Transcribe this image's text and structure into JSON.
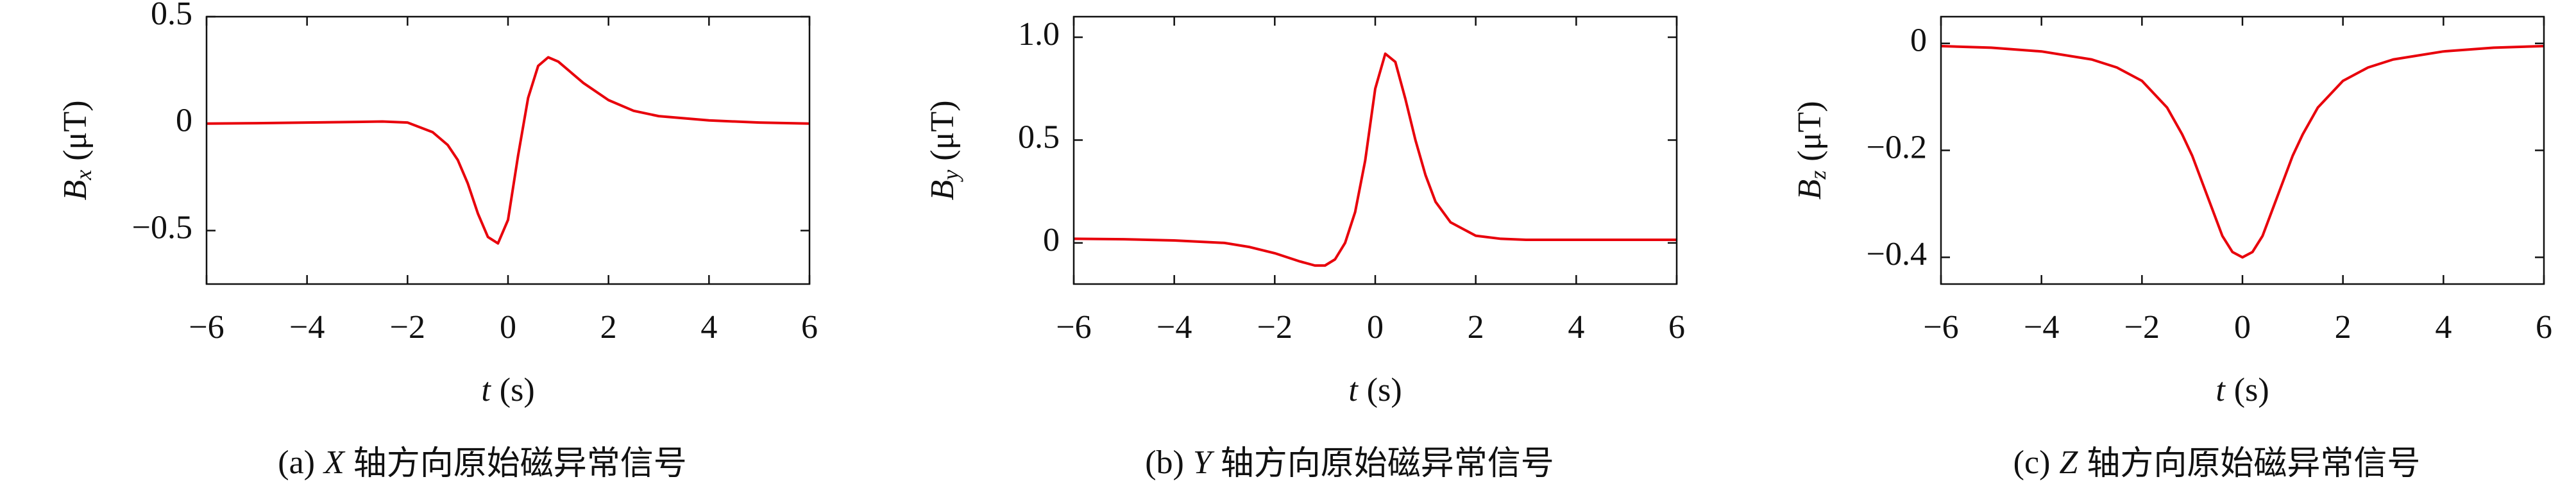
{
  "chart_data": [
    {
      "type": "line",
      "y_label": {
        "symbol": "B",
        "subscript": "x",
        "unit": "(μT)"
      },
      "x_label": {
        "symbol": "t",
        "unit": "(s)"
      },
      "caption": {
        "tag": "(a)",
        "axis": "X",
        "text": "轴方向原始磁异常信号"
      },
      "x": [
        -6,
        -5,
        -4,
        -3,
        -2.5,
        -2,
        -1.5,
        -1.2,
        -1,
        -0.8,
        -0.6,
        -0.4,
        -0.2,
        0,
        0.2,
        0.4,
        0.6,
        0.8,
        1,
        1.2,
        1.5,
        2,
        2.5,
        3,
        4,
        5,
        6
      ],
      "series": [
        {
          "color": "#e8000b",
          "values": [
            0,
            0.002,
            0.005,
            0.008,
            0.01,
            0.005,
            -0.04,
            -0.1,
            -0.17,
            -0.28,
            -0.42,
            -0.53,
            -0.56,
            -0.45,
            -0.15,
            0.12,
            0.27,
            0.31,
            0.29,
            0.25,
            0.19,
            0.11,
            0.06,
            0.035,
            0.015,
            0.005,
            0
          ]
        }
      ],
      "xlim": [
        -6,
        6
      ],
      "xticks": [
        {
          "value": -6,
          "label": "−6"
        },
        {
          "value": -4,
          "label": "−4"
        },
        {
          "value": -2,
          "label": "−2"
        },
        0,
        2,
        4,
        6
      ],
      "ylim": [
        -0.75,
        0.5
      ],
      "yticks": [
        {
          "value": -0.5,
          "label": "−0.5"
        },
        0,
        0.5
      ]
    },
    {
      "type": "line",
      "y_label": {
        "symbol": "B",
        "subscript": "y",
        "unit": "(μT)"
      },
      "x_label": {
        "symbol": "t",
        "unit": "(s)"
      },
      "caption": {
        "tag": "(b)",
        "axis": "Y",
        "text": "轴方向原始磁异常信号"
      },
      "x": [
        -6,
        -5,
        -4,
        -3,
        -2.5,
        -2,
        -1.5,
        -1.2,
        -1,
        -0.8,
        -0.6,
        -0.4,
        -0.2,
        0,
        0.2,
        0.4,
        0.6,
        0.8,
        1,
        1.2,
        1.5,
        2,
        2.5,
        3,
        4,
        5,
        6
      ],
      "series": [
        {
          "color": "#e8000b",
          "values": [
            0.02,
            0.018,
            0.012,
            0,
            -0.02,
            -0.05,
            -0.09,
            -0.11,
            -0.11,
            -0.08,
            0,
            0.15,
            0.4,
            0.75,
            0.92,
            0.88,
            0.7,
            0.5,
            0.33,
            0.2,
            0.1,
            0.035,
            0.02,
            0.015,
            0.015,
            0.015,
            0.015
          ]
        }
      ],
      "xlim": [
        -6,
        6
      ],
      "xticks": [
        {
          "value": -6,
          "label": "−6"
        },
        {
          "value": -4,
          "label": "−4"
        },
        {
          "value": -2,
          "label": "−2"
        },
        0,
        2,
        4,
        6
      ],
      "ylim": [
        -0.2,
        1.1
      ],
      "yticks": [
        0,
        0.5,
        {
          "value": 1,
          "label": "1.0"
        }
      ]
    },
    {
      "type": "line",
      "y_label": {
        "symbol": "B",
        "subscript": "z",
        "unit": "(μT)"
      },
      "x_label": {
        "symbol": "t",
        "unit": "(s)"
      },
      "caption": {
        "tag": "(c)",
        "axis": "Z",
        "text": "轴方向原始磁异常信号"
      },
      "x": [
        -6,
        -5,
        -4,
        -3,
        -2.5,
        -2,
        -1.5,
        -1.2,
        -1,
        -0.8,
        -0.6,
        -0.4,
        -0.2,
        0,
        0.2,
        0.4,
        0.6,
        0.8,
        1,
        1.2,
        1.5,
        2,
        2.5,
        3,
        4,
        5,
        6
      ],
      "series": [
        {
          "color": "#e8000b",
          "values": [
            -0.005,
            -0.008,
            -0.015,
            -0.03,
            -0.045,
            -0.07,
            -0.12,
            -0.17,
            -0.21,
            -0.26,
            -0.31,
            -0.36,
            -0.39,
            -0.4,
            -0.39,
            -0.36,
            -0.31,
            -0.26,
            -0.21,
            -0.17,
            -0.12,
            -0.07,
            -0.045,
            -0.03,
            -0.015,
            -0.008,
            -0.005
          ]
        }
      ],
      "xlim": [
        -6,
        6
      ],
      "xticks": [
        {
          "value": -6,
          "label": "−6"
        },
        {
          "value": -4,
          "label": "−4"
        },
        {
          "value": -2,
          "label": "−2"
        },
        0,
        2,
        4,
        6
      ],
      "ylim": [
        -0.45,
        0.05
      ],
      "yticks": [
        {
          "value": -0.4,
          "label": "−0.4"
        },
        {
          "value": -0.2,
          "label": "−0.2"
        },
        0
      ]
    }
  ]
}
